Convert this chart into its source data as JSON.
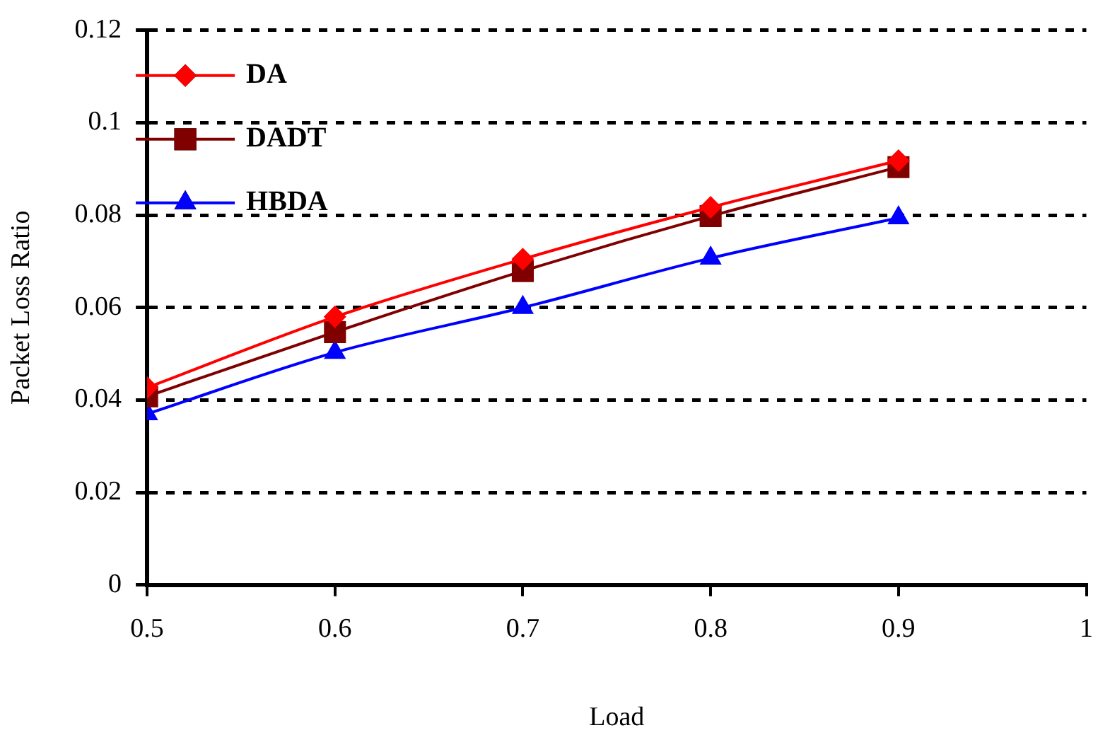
{
  "chart_data": {
    "type": "line",
    "xlabel": "Load",
    "ylabel": "Packet Loss Ratio",
    "x": [
      0.5,
      0.6,
      0.7,
      0.8,
      0.9
    ],
    "series": [
      {
        "name": "DA",
        "color": "#ff0000",
        "marker": "diamond",
        "values": [
          0.0427,
          0.058,
          0.0705,
          0.0817,
          0.0918
        ]
      },
      {
        "name": "DADT",
        "color": "#800000",
        "marker": "square",
        "values": [
          0.0408,
          0.0547,
          0.0679,
          0.0798,
          0.0904
        ]
      },
      {
        "name": "HBDA",
        "color": "#0000ff",
        "marker": "triangle",
        "values": [
          0.037,
          0.0503,
          0.06,
          0.0707,
          0.0794
        ]
      }
    ],
    "xlim": [
      0.5,
      1
    ],
    "xticks": [
      0.5,
      0.6,
      0.7,
      0.8,
      0.9,
      1
    ],
    "ylim": [
      0,
      0.12
    ],
    "yticks": [
      0,
      0.02,
      0.04,
      0.06,
      0.08,
      0.1,
      0.12
    ],
    "grid": "y",
    "legend": "top left",
    "line_style": "solid"
  }
}
